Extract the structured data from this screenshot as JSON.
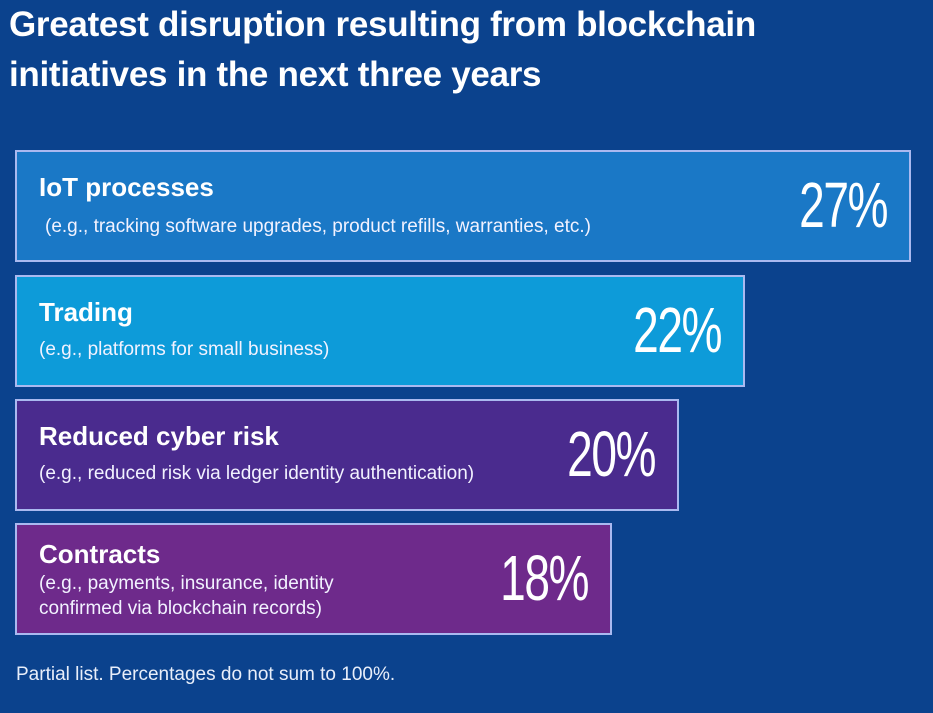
{
  "chart_data": {
    "type": "bar",
    "orientation": "horizontal",
    "title": "Greatest disruption resulting from blockchain initiatives in the next three years",
    "title_lines": [
      "Greatest disruption resulting from blockchain",
      "initiatives in the next three years"
    ],
    "categories": [
      "IoT processes",
      "Trading",
      "Reduced cyber risk",
      "Contracts"
    ],
    "descriptions": [
      "(e.g., tracking software upgrades, product refills, warranties, etc.)",
      "(e.g., platforms for small business)",
      "(e.g., reduced risk via ledger identity authentication)",
      "(e.g., payments, insurance, identity confirmed via blockchain records)"
    ],
    "values": [
      27,
      22,
      20,
      18
    ],
    "value_labels": [
      "27%",
      "22%",
      "20%",
      "18%"
    ],
    "colors": [
      "#1a78c6",
      "#0d9bd9",
      "#4a2b8e",
      "#6e2a8b"
    ],
    "xlabel": "",
    "ylabel": "",
    "footnote": "Partial list. Percentages do not sum to 100%."
  }
}
